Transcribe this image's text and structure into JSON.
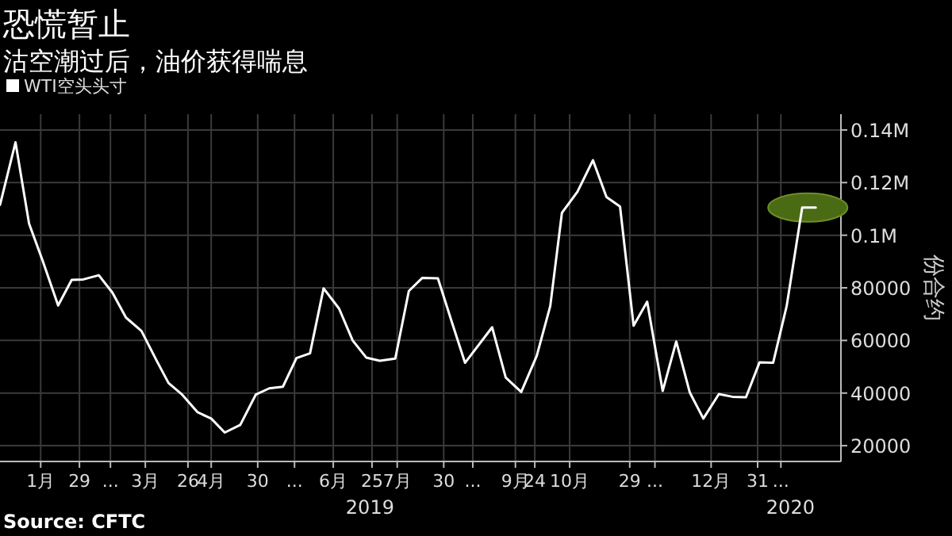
{
  "chart_data": {
    "type": "line",
    "title": "恐慌暂止",
    "subtitle": "沽空潮过后，油价获得喘息",
    "ylabel": "份合约",
    "x": [
      "2018-12-19",
      "2018-12-27",
      "2019-01-03",
      "2019-01-10",
      "2019-01-18",
      "2019-01-25",
      "2019-01-31",
      "2019-02-08",
      "2019-02-15",
      "2019-02-22",
      "2019-03-02",
      "2019-03-10",
      "2019-03-16",
      "2019-03-23",
      "2019-03-31",
      "2019-04-07",
      "2019-04-14",
      "2019-04-22",
      "2019-04-30",
      "2019-05-07",
      "2019-05-14",
      "2019-05-21",
      "2019-05-28",
      "2019-06-04",
      "2019-06-12",
      "2019-06-19",
      "2019-06-26",
      "2019-07-03",
      "2019-07-11",
      "2019-07-18",
      "2019-07-25",
      "2019-08-02",
      "2019-08-09",
      "2019-08-16",
      "2019-08-30",
      "2019-09-06",
      "2019-09-14",
      "2019-09-22",
      "2019-09-29",
      "2019-10-05",
      "2019-10-13",
      "2019-10-21",
      "2019-10-28",
      "2019-11-04",
      "2019-11-11",
      "2019-11-18",
      "2019-11-26",
      "2019-12-03",
      "2019-12-10",
      "2019-12-17",
      "2019-12-25",
      "2020-01-01",
      "2020-01-08",
      "2020-01-15",
      "2020-01-22",
      "2020-01-29",
      "2020-02-06",
      "2020-02-13"
    ],
    "series": [
      {
        "name": "WTI空头头寸",
        "color": "#ffffff",
        "values": [
          111500,
          135300,
          104400,
          90300,
          73300,
          83000,
          83200,
          84800,
          78200,
          68700,
          63600,
          52100,
          43800,
          39400,
          32700,
          30300,
          25000,
          27900,
          39400,
          41800,
          42400,
          53300,
          55100,
          79800,
          72100,
          60000,
          53500,
          52300,
          53100,
          78800,
          83800,
          83600,
          67400,
          51500,
          65000,
          45900,
          40400,
          54100,
          73100,
          108500,
          116500,
          128500,
          114500,
          110900,
          65600,
          74700,
          40800,
          59600,
          40200,
          30300,
          39600,
          38600,
          38400,
          51700,
          51500,
          73100,
          110500,
          110500
        ]
      }
    ],
    "xlim": [
      "2018-12-19",
      "2020-02-26"
    ],
    "xticks": [
      {
        "value": "2019-01-09",
        "label": "1月"
      },
      {
        "value": "2019-01-29",
        "label": "29"
      },
      {
        "value": "2019-02-14",
        "label": "..."
      },
      {
        "value": "2019-03-04",
        "label": "3月"
      },
      {
        "value": "2019-03-26",
        "label": "26"
      },
      {
        "value": "2019-04-07",
        "label": "4月"
      },
      {
        "value": "2019-05-01",
        "label": "30"
      },
      {
        "value": "2019-05-20",
        "label": "..."
      },
      {
        "value": "2019-06-09",
        "label": "6月"
      },
      {
        "value": "2019-06-29",
        "label": "25"
      },
      {
        "value": "2019-07-12",
        "label": "7月"
      },
      {
        "value": "2019-08-05",
        "label": "30"
      },
      {
        "value": "2019-08-20",
        "label": "..."
      },
      {
        "value": "2019-09-11",
        "label": "9月"
      },
      {
        "value": "2019-09-21",
        "label": "24"
      },
      {
        "value": "2019-10-09",
        "label": "10月"
      },
      {
        "value": "2019-11-09",
        "label": "29"
      },
      {
        "value": "2019-11-22",
        "label": "..."
      },
      {
        "value": "2019-12-21",
        "label": "12月"
      },
      {
        "value": "2020-01-14",
        "label": "31"
      },
      {
        "value": "2020-01-26",
        "label": "..."
      }
    ],
    "ylim": [
      14000,
      146000
    ],
    "yticks": [
      20000,
      40000,
      60000,
      80000,
      {
        "value": 100000,
        "label": "0.1M"
      },
      {
        "value": 120000,
        "label": "0.12M"
      },
      {
        "value": 140000,
        "label": "0.14M"
      }
    ],
    "grid": true,
    "legend": "top left",
    "marker": "none",
    "line_style": "solid",
    "annotations": [
      "2019",
      "2020",
      "Source: CFTC"
    ]
  }
}
